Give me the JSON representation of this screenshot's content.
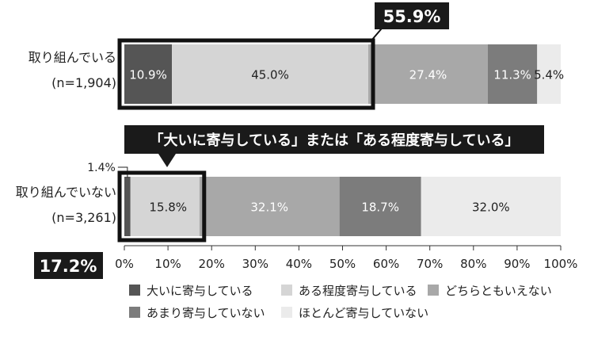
{
  "chart_data": {
    "type": "bar",
    "orientation": "horizontal",
    "stacked": true,
    "categories": [
      {
        "label": "取り組んでいる",
        "n": "(n=1,904)"
      },
      {
        "label": "取り組んでいない",
        "n": "(n=3,261)"
      }
    ],
    "series": [
      {
        "name": "大いに寄与している",
        "color": "#555555",
        "values": [
          10.9,
          1.4
        ],
        "labels": [
          "10.9%",
          "1.4%"
        ],
        "text_color": "#ffffff"
      },
      {
        "name": "ある程度寄与している",
        "color": "#d5d5d5",
        "values": [
          45.0,
          15.8
        ],
        "labels": [
          "45.0%",
          "15.8%"
        ],
        "text_color": "#222222"
      },
      {
        "name": "どちらともいえない",
        "color": "#a8a8a8",
        "values": [
          27.4,
          32.1
        ],
        "labels": [
          "27.4%",
          "32.1%"
        ],
        "text_color": "#ffffff"
      },
      {
        "name": "あまり寄与していない",
        "color": "#7c7c7c",
        "values": [
          11.3,
          18.7
        ],
        "labels": [
          "11.3%",
          "18.7%"
        ],
        "text_color": "#ffffff"
      },
      {
        "name": "ほとんど寄与していない",
        "color": "#ebebeb",
        "values": [
          5.4,
          32.0
        ],
        "labels": [
          "5.4%",
          "32.0%"
        ],
        "text_color": "#222222"
      }
    ],
    "xlim": [
      0,
      100
    ],
    "xticks": [
      0,
      10,
      20,
      30,
      40,
      50,
      60,
      70,
      80,
      90,
      100
    ],
    "xtick_labels": [
      "0%",
      "10%",
      "20%",
      "30%",
      "40%",
      "50%",
      "60%",
      "70%",
      "80%",
      "90%",
      "100%"
    ],
    "grid": false,
    "legend_position": "bottom",
    "annotations": {
      "combined_top": "55.9%",
      "combined_bottom": "17.2%",
      "callout": "「大いに寄与している」または「ある程度寄与している」"
    }
  }
}
